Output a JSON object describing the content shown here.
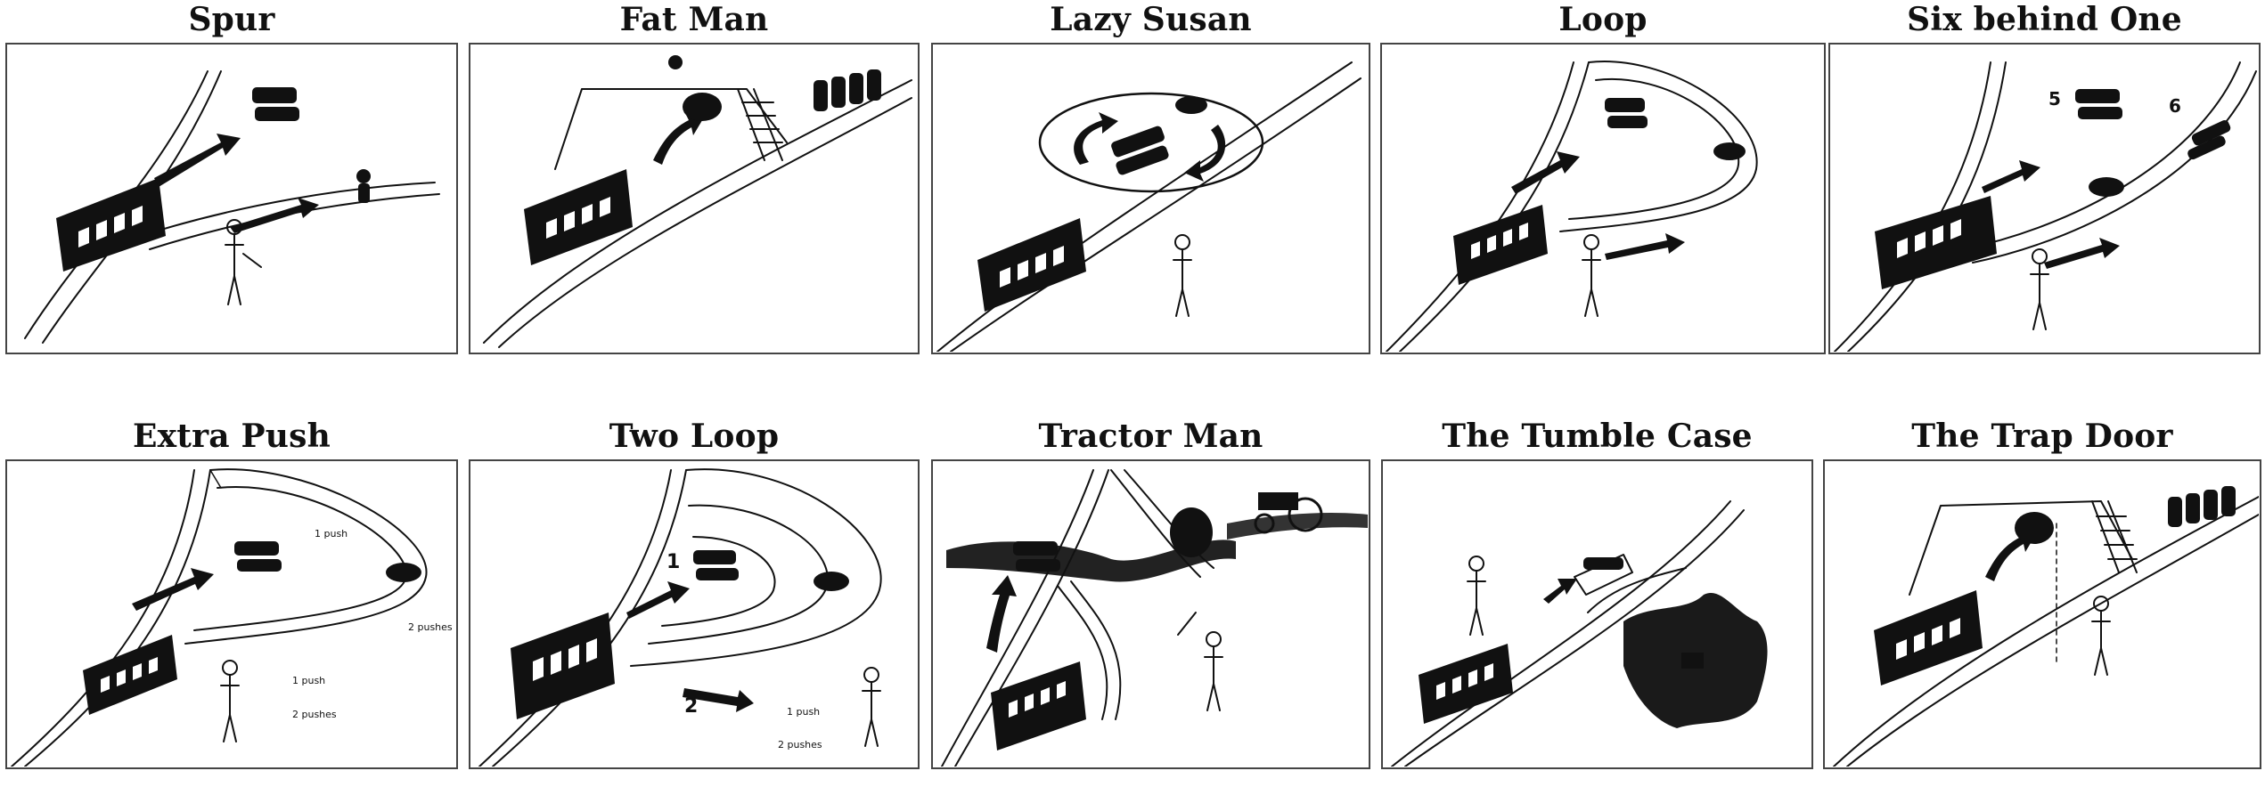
{
  "panels": [
    {
      "id": "spur",
      "title": "Spur",
      "labels": []
    },
    {
      "id": "fat-man",
      "title": "Fat Man",
      "labels": []
    },
    {
      "id": "lazy-susan",
      "title": "Lazy Susan",
      "labels": []
    },
    {
      "id": "loop",
      "title": "Loop",
      "labels": []
    },
    {
      "id": "six-behind-one",
      "title": "Six behind One",
      "labels": [
        "5",
        "6"
      ]
    },
    {
      "id": "extra-push",
      "title": "Extra Push",
      "labels": [
        "1 push",
        "2 pushes",
        "1 push",
        "2 pushes"
      ]
    },
    {
      "id": "two-loop",
      "title": "Two Loop",
      "labels": [
        "1",
        "2",
        "1 push",
        "2 pushes"
      ]
    },
    {
      "id": "tractor-man",
      "title": "Tractor Man",
      "labels": []
    },
    {
      "id": "tumble-case",
      "title": "The Tumble Case",
      "labels": []
    },
    {
      "id": "trap-door",
      "title": "The Trap Door",
      "labels": []
    }
  ]
}
